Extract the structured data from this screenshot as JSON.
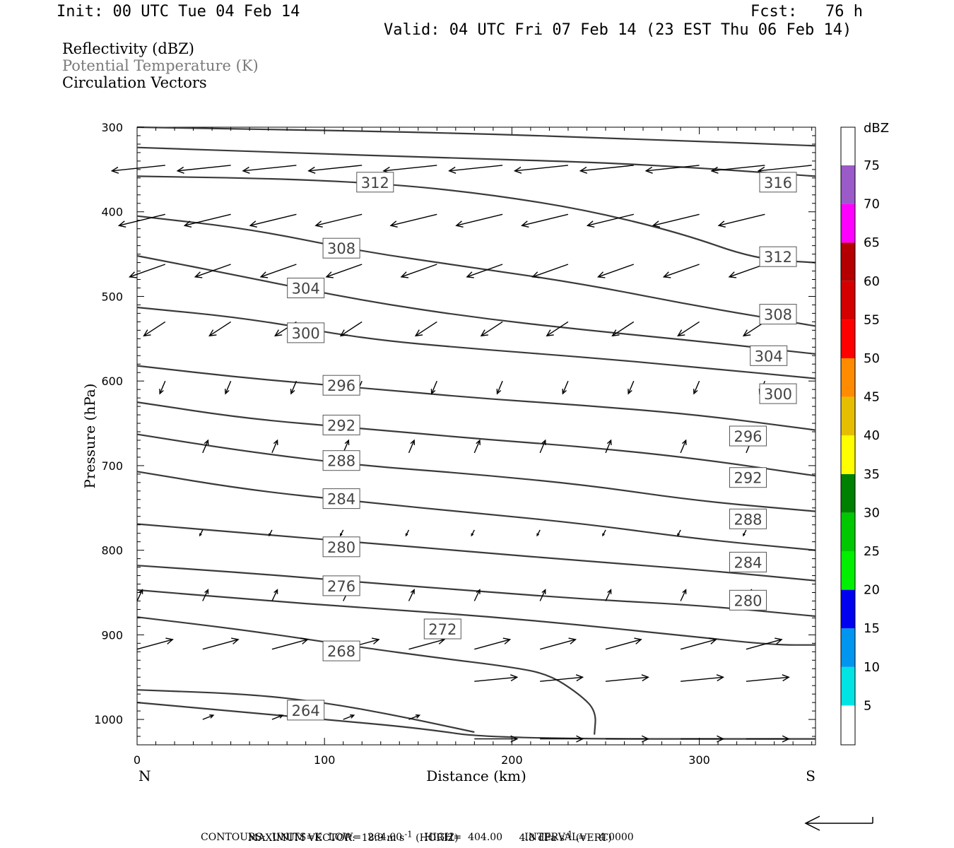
{
  "header": {
    "init": "Init: 00 UTC Tue 04 Feb 14",
    "fcst": "Fcst:   76 h",
    "valid": "Valid: 04 UTC Fri 07 Feb 14 (23 EST Thu 06 Feb 14)"
  },
  "fields": {
    "reflectivity": "Reflectivity (dBZ)",
    "theta": "Potential Temperature (K)",
    "vectors": "Circulation Vectors"
  },
  "footer": {
    "max_vector_prefix": "MAXIMUM VECTOR:  18.9 m s",
    "max_vector_horiz": " (HORIZ)",
    "max_vector_vert_prefix": "4.8 dPa s",
    "max_vector_vert": " (VERT)",
    "exponent": "-1",
    "contours": "CONTOURS:  UNITS=K  LOW=  264.00       HIGH=  404.00       INTERVAL=    4.0000"
  },
  "colors": {
    "contour": "#3a3a3a",
    "vector": "#000000"
  },
  "chart_data": {
    "type": "cross-section",
    "xlabel": "Distance (km)",
    "ylabel": "Pressure (hPa)",
    "xlim": [
      0,
      362
    ],
    "ylim": [
      300,
      1030
    ],
    "y_inverted": true,
    "xticks": [
      0,
      100,
      200,
      300
    ],
    "yticks": [
      300,
      400,
      500,
      600,
      700,
      800,
      900,
      1000
    ],
    "x_end_labels": {
      "left": "N",
      "right": "S"
    },
    "colorbar": {
      "unit": "dBZ",
      "levels": [
        5,
        10,
        15,
        20,
        25,
        30,
        35,
        40,
        45,
        50,
        55,
        60,
        65,
        70,
        75
      ],
      "colors": [
        "#ffffff",
        "#00e4e4",
        "#0096f0",
        "#0000f0",
        "#00f000",
        "#00c800",
        "#008000",
        "#ffff00",
        "#e6be00",
        "#ff8c00",
        "#ff0000",
        "#d40000",
        "#b40000",
        "#ff00ff",
        "#9a5ac8",
        "#ffffff"
      ]
    },
    "isentropes": [
      {
        "value": 264,
        "label": true,
        "points": [
          [
            0,
            980
          ],
          [
            50,
            990
          ],
          [
            100,
            1000
          ],
          [
            150,
            1010
          ],
          [
            190,
            1023
          ],
          [
            362,
            1023
          ]
        ]
      },
      {
        "value": 268,
        "label": true,
        "points": [
          [
            0,
            965
          ],
          [
            60,
            970
          ],
          [
            100,
            980
          ],
          [
            140,
            996
          ],
          [
            180,
            1015
          ]
        ]
      },
      {
        "value": 268,
        "label": false,
        "points": [
          [
            0,
            879
          ],
          [
            60,
            895
          ],
          [
            120,
            915
          ],
          [
            160,
            927
          ],
          [
            200,
            938
          ],
          [
            220,
            947
          ],
          [
            236,
            970
          ],
          [
            245,
            990
          ],
          [
            244,
            1018
          ]
        ]
      },
      {
        "value": 272,
        "label": true,
        "points": [
          [
            0,
            847
          ],
          [
            60,
            858
          ],
          [
            120,
            868
          ],
          [
            180,
            877
          ],
          [
            240,
            889
          ],
          [
            300,
            903
          ],
          [
            340,
            912
          ],
          [
            362,
            912
          ]
        ]
      },
      {
        "value": 276,
        "label": true,
        "points": [
          [
            0,
            818
          ],
          [
            60,
            827
          ],
          [
            120,
            838
          ],
          [
            180,
            848
          ],
          [
            240,
            858
          ],
          [
            300,
            865
          ],
          [
            362,
            878
          ]
        ]
      },
      {
        "value": 280,
        "label": true,
        "points": [
          [
            0,
            769
          ],
          [
            60,
            780
          ],
          [
            120,
            791
          ],
          [
            180,
            802
          ],
          [
            240,
            813
          ],
          [
            300,
            823
          ],
          [
            362,
            836
          ]
        ]
      },
      {
        "value": 284,
        "label": true,
        "points": [
          [
            0,
            707
          ],
          [
            60,
            729
          ],
          [
            120,
            743
          ],
          [
            180,
            756
          ],
          [
            240,
            769
          ],
          [
            300,
            787
          ],
          [
            362,
            800
          ]
        ]
      },
      {
        "value": 288,
        "label": true,
        "points": [
          [
            0,
            663
          ],
          [
            60,
            684
          ],
          [
            120,
            700
          ],
          [
            180,
            710
          ],
          [
            240,
            723
          ],
          [
            300,
            742
          ],
          [
            362,
            754
          ]
        ]
      },
      {
        "value": 292,
        "label": true,
        "points": [
          [
            0,
            625
          ],
          [
            60,
            645
          ],
          [
            120,
            656
          ],
          [
            180,
            668
          ],
          [
            240,
            678
          ],
          [
            300,
            692
          ],
          [
            362,
            712
          ]
        ]
      },
      {
        "value": 296,
        "label": true,
        "points": [
          [
            0,
            582
          ],
          [
            60,
            597
          ],
          [
            120,
            608
          ],
          [
            180,
            620
          ],
          [
            240,
            629
          ],
          [
            300,
            640
          ],
          [
            362,
            658
          ]
        ]
      },
      {
        "value": 300,
        "label": true,
        "points": [
          [
            0,
            513
          ],
          [
            60,
            526
          ],
          [
            120,
            550
          ],
          [
            180,
            562
          ],
          [
            240,
            572
          ],
          [
            300,
            584
          ],
          [
            362,
            597
          ]
        ]
      },
      {
        "value": 304,
        "label": true,
        "points": [
          [
            0,
            452
          ],
          [
            60,
            478
          ],
          [
            120,
            505
          ],
          [
            180,
            525
          ],
          [
            240,
            540
          ],
          [
            300,
            553
          ],
          [
            362,
            568
          ]
        ]
      },
      {
        "value": 308,
        "label": true,
        "points": [
          [
            0,
            405
          ],
          [
            60,
            420
          ],
          [
            120,
            447
          ],
          [
            180,
            466
          ],
          [
            240,
            486
          ],
          [
            300,
            512
          ],
          [
            362,
            535
          ]
        ]
      },
      {
        "value": 312,
        "label": true,
        "points": [
          [
            0,
            358
          ],
          [
            80,
            361
          ],
          [
            140,
            368
          ],
          [
            190,
            380
          ],
          [
            240,
            398
          ],
          [
            290,
            425
          ],
          [
            330,
            456
          ],
          [
            362,
            460
          ]
        ]
      },
      {
        "value": 316,
        "label": true,
        "points": [
          [
            0,
            324
          ],
          [
            80,
            330
          ],
          [
            160,
            336
          ],
          [
            240,
            341
          ],
          [
            300,
            348
          ],
          [
            362,
            358
          ]
        ]
      },
      {
        "value": 320,
        "label": false,
        "points": [
          [
            0,
            300
          ],
          [
            160,
            306
          ],
          [
            280,
            315
          ],
          [
            362,
            322
          ]
        ]
      }
    ],
    "contour_labels": [
      {
        "text": "312",
        "x": 127,
        "p": 365
      },
      {
        "text": "316",
        "x": 342,
        "p": 365
      },
      {
        "text": "308",
        "x": 109,
        "p": 443
      },
      {
        "text": "312",
        "x": 342,
        "p": 453
      },
      {
        "text": "304",
        "x": 90,
        "p": 490
      },
      {
        "text": "308",
        "x": 342,
        "p": 521
      },
      {
        "text": "300",
        "x": 90,
        "p": 543
      },
      {
        "text": "304",
        "x": 337,
        "p": 570
      },
      {
        "text": "296",
        "x": 109,
        "p": 605
      },
      {
        "text": "300",
        "x": 342,
        "p": 615
      },
      {
        "text": "292",
        "x": 109,
        "p": 652
      },
      {
        "text": "296",
        "x": 326,
        "p": 665
      },
      {
        "text": "288",
        "x": 109,
        "p": 694
      },
      {
        "text": "292",
        "x": 326,
        "p": 714
      },
      {
        "text": "284",
        "x": 109,
        "p": 739
      },
      {
        "text": "288",
        "x": 326,
        "p": 763
      },
      {
        "text": "280",
        "x": 109,
        "p": 796
      },
      {
        "text": "284",
        "x": 326,
        "p": 814
      },
      {
        "text": "276",
        "x": 109,
        "p": 842
      },
      {
        "text": "280",
        "x": 326,
        "p": 859
      },
      {
        "text": "272",
        "x": 163,
        "p": 893
      },
      {
        "text": "268",
        "x": 109,
        "p": 919
      },
      {
        "text": "264",
        "x": 90,
        "p": 989
      }
    ],
    "vectors_note": "arrow lengths are proportional to the reference vector (18.9 m s-1 horiz, 4.8 dPa s-1 vert)",
    "vectors": [
      {
        "p": 345,
        "u": -15,
        "w": 0.4,
        "xs": [
          15,
          50,
          85,
          120,
          160,
          195,
          230,
          265,
          300,
          335,
          360
        ]
      },
      {
        "p": 403,
        "u": -13,
        "w": 0.8,
        "xs": [
          15,
          50,
          85,
          120,
          160,
          195,
          230,
          265,
          300,
          335
        ]
      },
      {
        "p": 462,
        "u": -10,
        "w": 0.9,
        "xs": [
          15,
          50,
          85,
          120,
          160,
          195,
          230,
          265,
          300,
          335
        ]
      },
      {
        "p": 530,
        "u": -6,
        "w": 1.0,
        "xs": [
          15,
          50,
          85,
          120,
          160,
          195,
          230,
          265,
          300,
          335
        ]
      },
      {
        "p": 600,
        "u": -1.5,
        "w": 0.9,
        "xs": [
          15,
          50,
          85,
          120,
          160,
          195,
          230,
          265,
          300,
          335
        ]
      },
      {
        "p": 685,
        "u": 1.5,
        "w": -0.9,
        "xs": [
          35,
          72,
          110,
          145,
          180,
          215,
          250,
          290,
          325
        ]
      },
      {
        "p": 776,
        "u": -0.8,
        "w": 0.4,
        "xs": [
          35,
          72,
          110,
          145,
          180,
          215,
          250,
          290,
          325
        ]
      },
      {
        "p": 860,
        "u": 1.5,
        "w": -0.8,
        "xs": [
          0,
          35,
          72,
          110,
          145,
          180,
          215,
          250,
          290,
          325
        ]
      },
      {
        "p": 917,
        "u": 10,
        "w": -0.7,
        "xs": [
          0,
          35,
          72,
          110,
          145,
          180,
          215,
          250,
          290,
          325
        ]
      },
      {
        "p": 955,
        "u": 12,
        "w": -0.3,
        "xs": [
          180,
          215,
          250,
          290,
          325
        ]
      },
      {
        "p": 1000,
        "u": 3,
        "w": -0.3,
        "xs": [
          35,
          72,
          110,
          145
        ]
      },
      {
        "p": 1023,
        "u": 12,
        "w": 0.0,
        "xs": [
          180,
          215,
          250,
          290,
          325
        ]
      }
    ]
  }
}
